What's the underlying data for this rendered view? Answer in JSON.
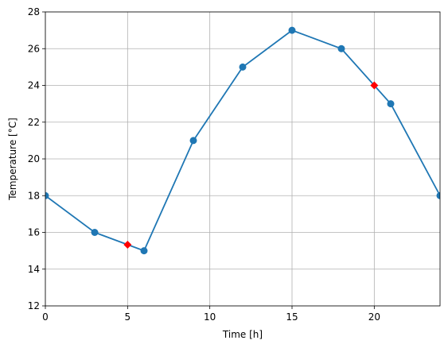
{
  "chart_data": {
    "type": "line",
    "title": "",
    "xlabel": "Time [h]",
    "ylabel": "Temperature [°C]",
    "xlim": [
      0,
      24
    ],
    "ylim": [
      12,
      28
    ],
    "grid": true,
    "x_ticks": [
      0,
      5,
      10,
      15,
      20
    ],
    "y_ticks": [
      12,
      14,
      16,
      18,
      20,
      22,
      24,
      26,
      28
    ],
    "series": [
      {
        "marker": "circle",
        "color": "#1f77b4",
        "x": [
          0,
          3,
          6,
          9,
          12,
          15,
          18,
          21,
          24
        ],
        "y": [
          18,
          16,
          15,
          21,
          25,
          27,
          26,
          23,
          18
        ]
      },
      {
        "marker": "diamond",
        "color": "#ff0000",
        "x": [
          5,
          20
        ],
        "y": [
          15.33,
          24
        ]
      }
    ]
  }
}
